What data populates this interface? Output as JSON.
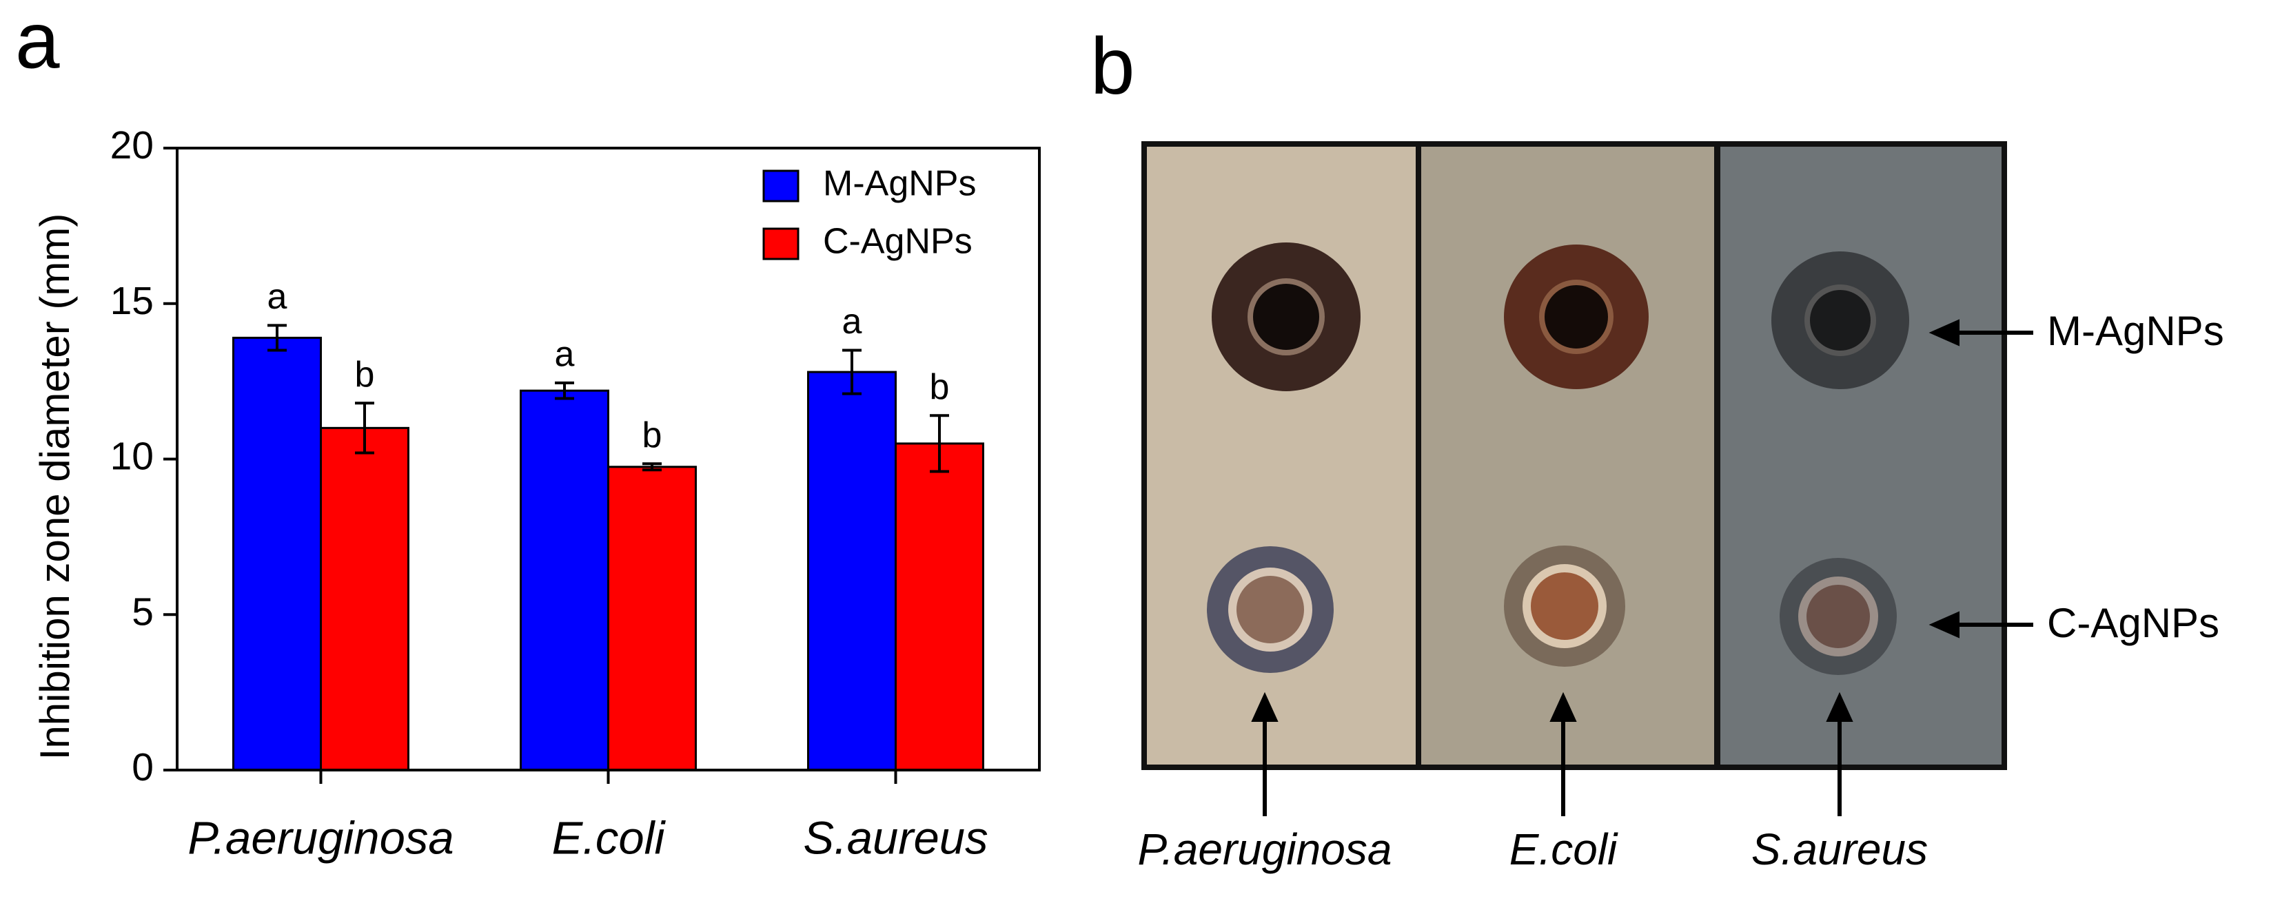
{
  "panel_labels": [
    "a",
    "b"
  ],
  "chart_data": {
    "type": "bar",
    "ylabel": "Inhibition zone diameter (mm)",
    "categories": [
      "P.aeruginosa",
      "E.coli",
      "S.aureus"
    ],
    "series": [
      {
        "name": "M-AgNPs",
        "color": "#0000ff",
        "values": [
          13.9,
          12.2,
          12.8
        ],
        "errors": [
          0.4,
          0.25,
          0.7
        ],
        "letters": [
          "a",
          "a",
          "a"
        ]
      },
      {
        "name": "C-AgNPs",
        "color": "#ff0000",
        "values": [
          11.0,
          9.75,
          10.5
        ],
        "errors": [
          0.8,
          0.1,
          0.9
        ],
        "letters": [
          "b",
          "b",
          "b"
        ]
      }
    ],
    "ylim": [
      0,
      20
    ],
    "yticks": [
      0,
      5,
      10,
      15,
      20
    ],
    "legend": "upper right"
  },
  "photo": {
    "columns": [
      "P.aeruginosa",
      "E.coli",
      "S.aureus"
    ],
    "annotations": [
      "M-AgNPs",
      "C-AgNPs"
    ]
  }
}
